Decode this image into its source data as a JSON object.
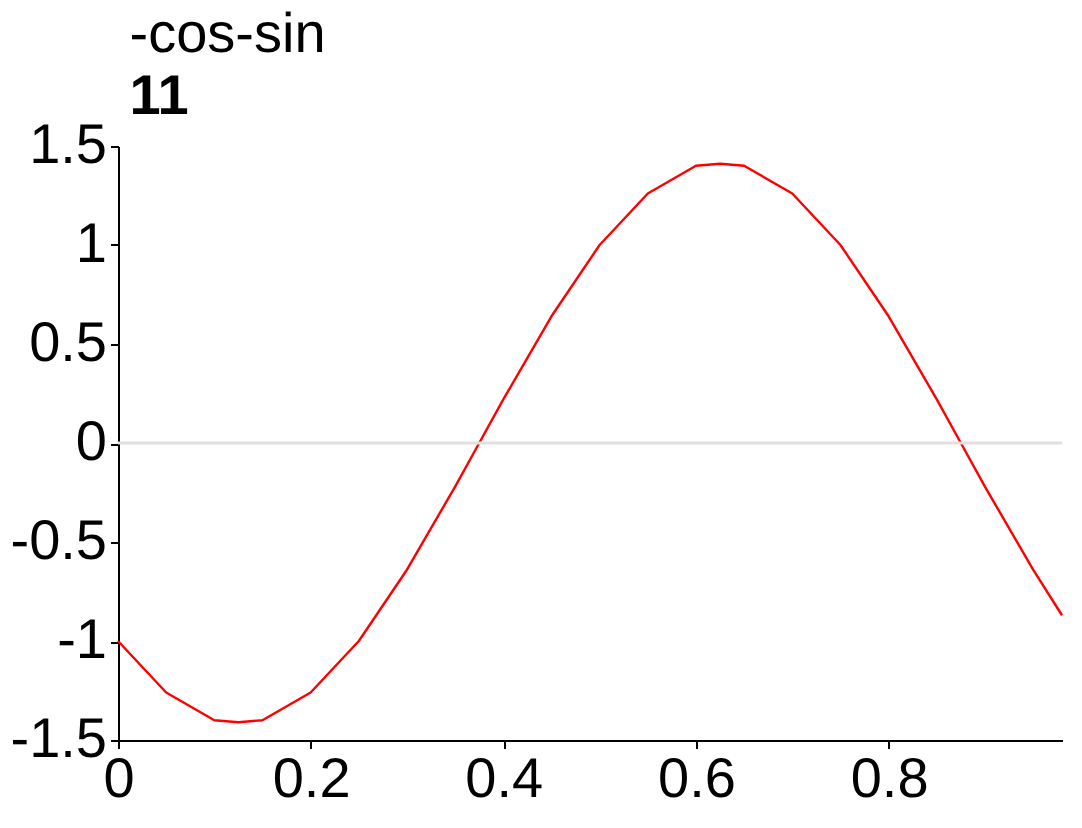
{
  "chart_data": {
    "type": "line",
    "title": "-cos-sin",
    "subtitle": "11",
    "x": [
      0,
      0.05,
      0.1,
      0.125,
      0.15,
      0.2,
      0.25,
      0.3,
      0.35,
      0.375,
      0.4,
      0.45,
      0.5,
      0.55,
      0.6,
      0.625,
      0.65,
      0.7,
      0.75,
      0.8,
      0.85,
      0.875,
      0.9,
      0.95,
      0.98
    ],
    "series": [
      {
        "color": "#ff0000",
        "values": [
          -1,
          -1.26,
          -1.4,
          -1.41,
          -1.4,
          -1.26,
          -1,
          -0.64,
          -0.22,
          0,
          0.22,
          0.64,
          1,
          1.26,
          1.4,
          1.41,
          1.4,
          1.26,
          1,
          0.64,
          0.22,
          0,
          -0.22,
          -0.64,
          -0.87
        ]
      }
    ],
    "xlim": [
      0,
      0.98
    ],
    "xticks": [
      0,
      0.2,
      0.4,
      0.6,
      0.8
    ],
    "ylim": [
      -1.5,
      1.5
    ],
    "yticks": [
      -1.5,
      -1,
      -0.5,
      0,
      0.5,
      1,
      1.5
    ],
    "grid": false,
    "ref_lines": [
      {
        "axis": "y",
        "value": 0,
        "color": "#e0e0e0"
      }
    ]
  }
}
